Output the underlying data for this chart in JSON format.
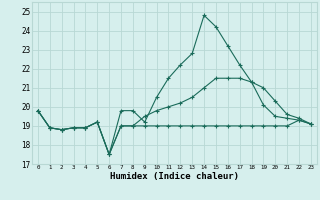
{
  "xlabel": "Humidex (Indice chaleur)",
  "bg_color": "#d6efed",
  "grid_color": "#b8d8d4",
  "line_color": "#1a6b5a",
  "xlim": [
    -0.5,
    23.5
  ],
  "ylim": [
    17,
    25.5
  ],
  "yticks": [
    17,
    18,
    19,
    20,
    21,
    22,
    23,
    24,
    25
  ],
  "xticks": [
    0,
    1,
    2,
    3,
    4,
    5,
    6,
    7,
    8,
    9,
    10,
    11,
    12,
    13,
    14,
    15,
    16,
    17,
    18,
    19,
    20,
    21,
    22,
    23
  ],
  "line1_x": [
    0,
    1,
    2,
    3,
    4,
    5,
    6,
    7,
    8,
    9,
    10,
    11,
    12,
    13,
    14,
    15,
    16,
    17,
    18,
    19,
    20,
    21,
    22,
    23
  ],
  "line1_y": [
    19.8,
    18.9,
    18.8,
    18.9,
    18.9,
    19.2,
    17.5,
    19.0,
    19.0,
    19.0,
    19.0,
    19.0,
    19.0,
    19.0,
    19.0,
    19.0,
    19.0,
    19.0,
    19.0,
    19.0,
    19.0,
    19.0,
    19.3,
    19.1
  ],
  "line2_x": [
    0,
    1,
    2,
    3,
    4,
    5,
    6,
    7,
    8,
    9,
    10,
    11,
    12,
    13,
    14,
    15,
    16,
    17,
    18,
    19,
    20,
    21,
    22,
    23
  ],
  "line2_y": [
    19.8,
    18.9,
    18.8,
    18.9,
    18.9,
    19.2,
    17.5,
    19.8,
    19.8,
    19.2,
    20.5,
    21.5,
    22.2,
    22.8,
    24.8,
    24.2,
    23.2,
    22.2,
    21.3,
    20.1,
    19.5,
    19.4,
    19.3,
    19.1
  ],
  "line3_x": [
    0,
    1,
    2,
    3,
    4,
    5,
    6,
    7,
    8,
    9,
    10,
    11,
    12,
    13,
    14,
    15,
    16,
    17,
    18,
    19,
    20,
    21,
    22,
    23
  ],
  "line3_y": [
    19.8,
    18.9,
    18.8,
    18.9,
    18.9,
    19.2,
    17.5,
    19.0,
    19.0,
    19.5,
    19.8,
    20.0,
    20.2,
    20.5,
    21.0,
    21.5,
    21.5,
    21.5,
    21.3,
    21.0,
    20.3,
    19.6,
    19.4,
    19.1
  ]
}
